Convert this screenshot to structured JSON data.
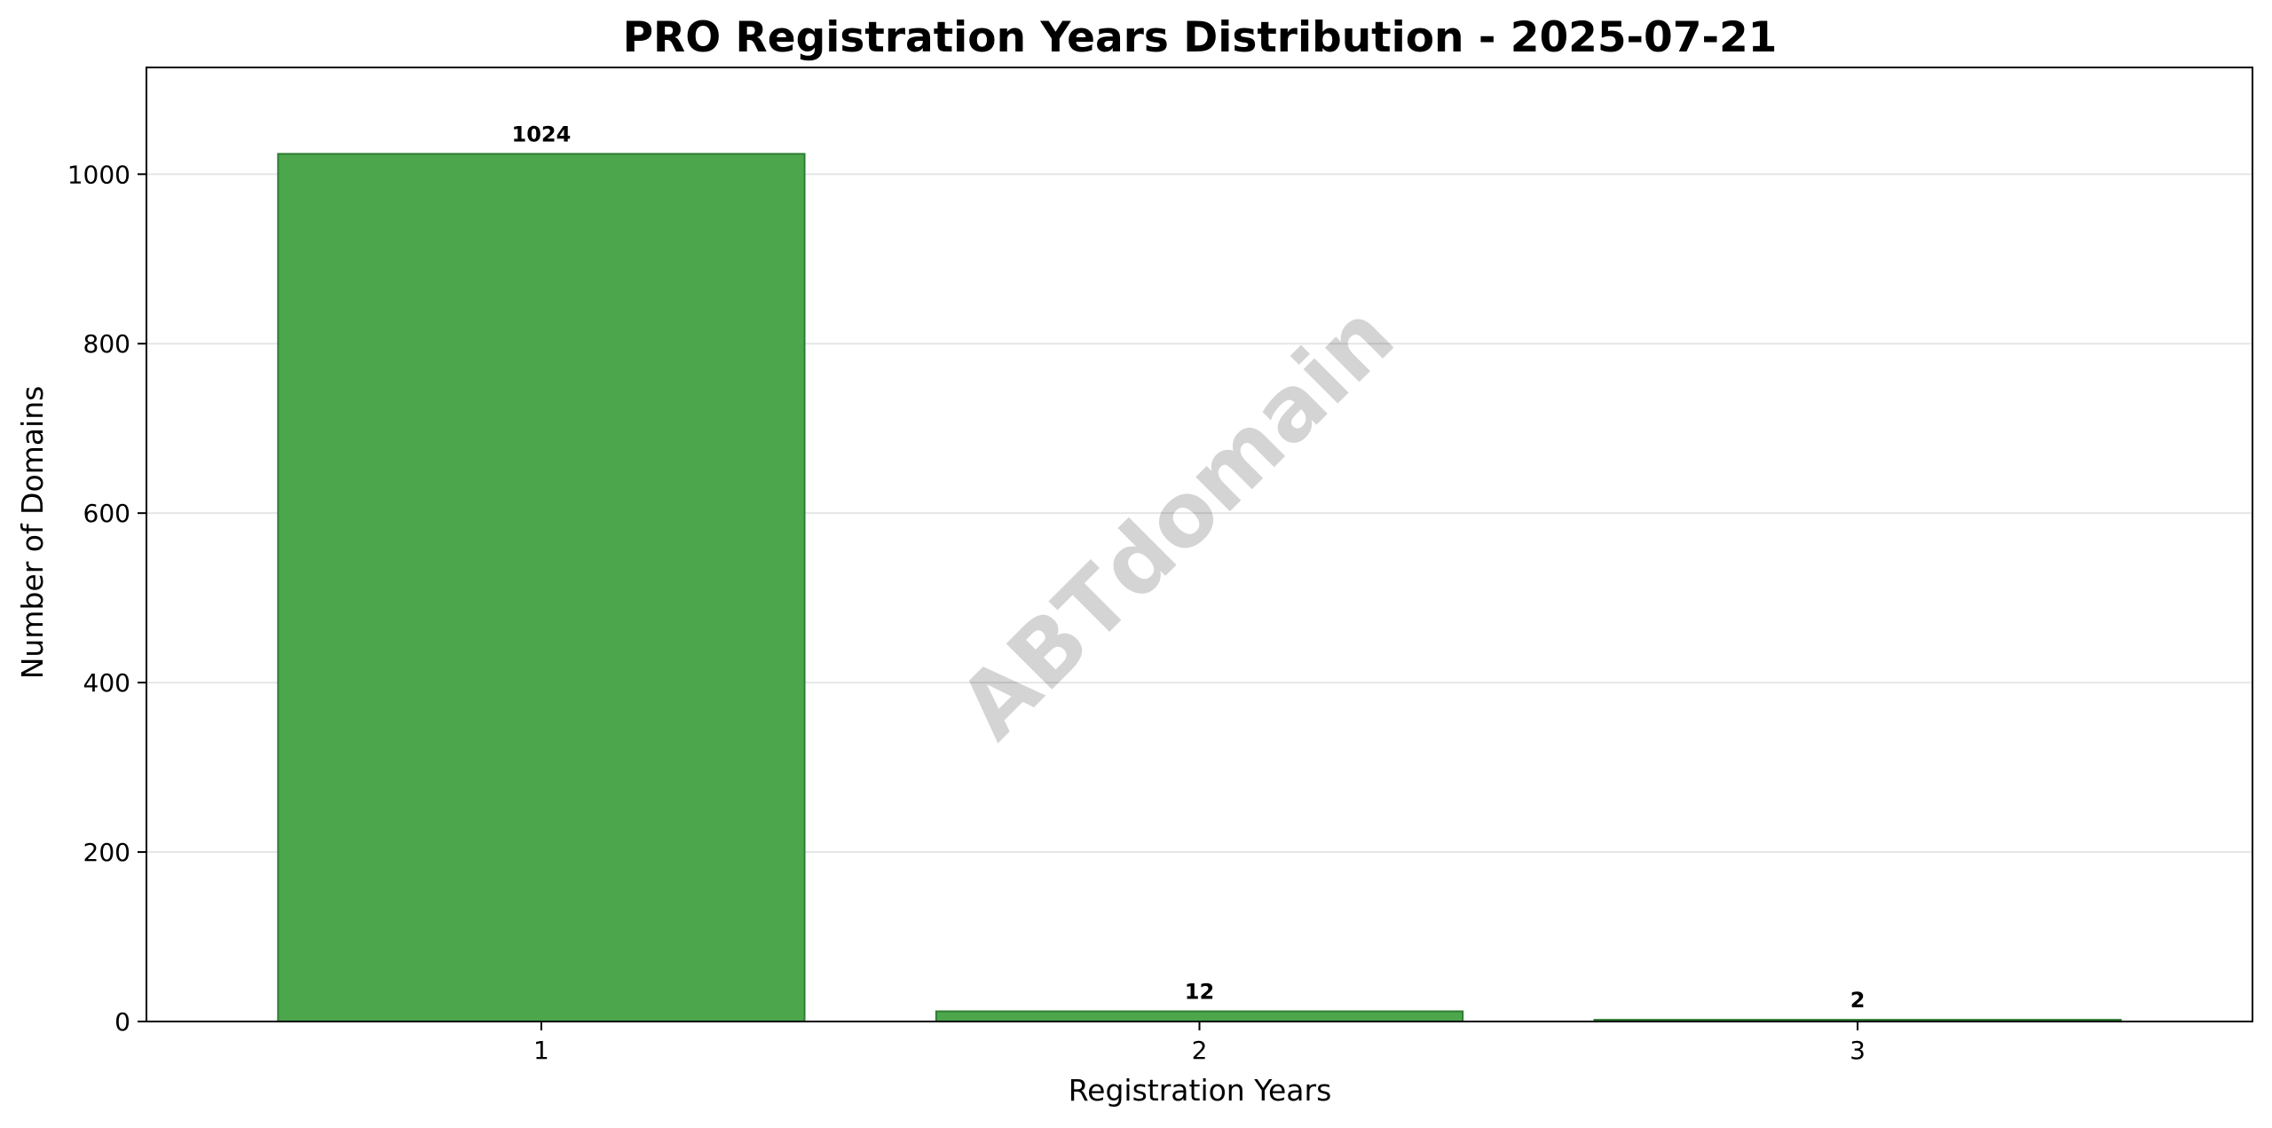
{
  "chart_data": {
    "type": "bar",
    "title": "PRO Registration Years Distribution - 2025-07-21",
    "xlabel": "Registration Years",
    "ylabel": "Number of Domains",
    "categories": [
      "1",
      "2",
      "3"
    ],
    "values": [
      1024,
      12,
      2
    ],
    "data_labels": [
      "1024",
      "12",
      "2"
    ],
    "ylim": [
      0,
      1126
    ],
    "yticks": [
      0,
      200,
      400,
      600,
      800,
      1000
    ],
    "grid": "y",
    "legend": "none",
    "bar_color": "#4ca64c",
    "bar_edge_color": "#2e7d32",
    "grid_color": "#e6e6e6",
    "watermark": "ABTdomain"
  }
}
